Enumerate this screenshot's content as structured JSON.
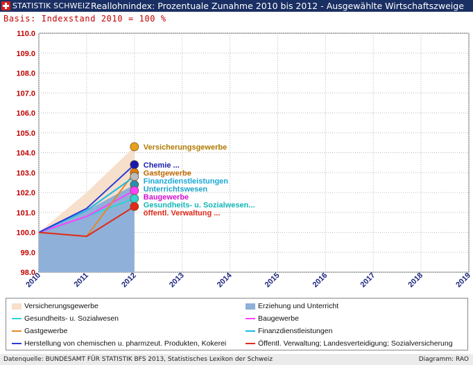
{
  "header": {
    "brand": "STATISTIK SCHWEIZ",
    "title": "Reallohnindex: Prozentuale Zunahme 2010 bis 2012 - Ausgewählte Wirtschaftszweige",
    "subtitle": "Basis: Indexstand 2010 = 100 %"
  },
  "chart_data": {
    "type": "line",
    "title": "Reallohnindex: Prozentuale Zunahme 2010 bis 2012 - Ausgewählte Wirtschaftszweige",
    "subtitle": "Basis: Indexstand 2010 = 100 %",
    "x": [
      2010,
      2011,
      2012
    ],
    "xlim": [
      2010,
      2019
    ],
    "ylim": [
      98.0,
      110.0
    ],
    "x_ticks": [
      "2010",
      "2011",
      "2012",
      "2013",
      "2014",
      "2015",
      "2016",
      "2017",
      "2018",
      "2019"
    ],
    "y_ticks": [
      "98.0",
      "99.0",
      "100.0",
      "101.0",
      "102.0",
      "103.0",
      "104.0",
      "105.0",
      "106.0",
      "107.0",
      "108.0",
      "109.0",
      "110.0"
    ],
    "grid": true,
    "legend_position": "bottom",
    "series": [
      {
        "name": "Versicherungsgewerbe",
        "kind": "area",
        "values": [
          100.0,
          102.0,
          104.3
        ],
        "color": "#f6dfcb",
        "marker_color": "#e8a21a",
        "label": "Versicherungsgewerbe",
        "label_color": "#b07a00"
      },
      {
        "name": "Erziehung und Unterricht",
        "kind": "area",
        "values": [
          100.0,
          101.1,
          102.4
        ],
        "color": "#8fb0d8",
        "marker_color": "#2b8fb0",
        "label": "Unterrichtswesen",
        "label_color": "#18a2c8"
      },
      {
        "name": "Gesundheits- u. Sozialwesen",
        "kind": "line",
        "values": [
          100.0,
          100.8,
          101.7
        ],
        "color": "#2ad4d4",
        "marker_color": "#35d0d0",
        "label": "Gesundheits- u. Sozialwesen...",
        "label_color": "#14b6b6"
      },
      {
        "name": "Baugewerbe",
        "kind": "line",
        "values": [
          100.0,
          100.8,
          102.1
        ],
        "color": "#ff40ff",
        "marker_color": "#ff40ff",
        "label": "Baugewerbe",
        "label_color": "#d010d0"
      },
      {
        "name": "Gastgewerbe",
        "kind": "line",
        "values": [
          100.0,
          99.8,
          103.0
        ],
        "color": "#e08a2a",
        "marker_color": "#e07a10",
        "label": "Gastgewerbe",
        "label_color": "#c06a00"
      },
      {
        "name": "Finanzdienstleistungen",
        "kind": "line",
        "values": [
          100.0,
          101.1,
          102.8
        ],
        "color": "#19b8e6",
        "marker_color": "#bcbcbc",
        "label": "Finanzdienstleistungen",
        "label_color": "#18a8d8"
      },
      {
        "name": "Herstellung von chemischen u. pharmzeut. Produkten, Kokerei",
        "kind": "line",
        "values": [
          100.0,
          101.2,
          103.4
        ],
        "color": "#2a3ad8",
        "marker_color": "#1a1ab0",
        "label": "Chemie ...",
        "label_color": "#1a1ab0"
      },
      {
        "name": "Öffentl. Verwaltung; Landesverteidigung; Sozialversicherung",
        "kind": "line",
        "values": [
          100.0,
          99.8,
          101.3
        ],
        "color": "#e02a1a",
        "marker_color": "#e02a1a",
        "label": "öffentl. Verwaltung ...",
        "label_color": "#e02a1a"
      }
    ]
  },
  "legend": {
    "left": [
      "Versicherungsgewerbe",
      "Gesundheits- u. Sozialwesen",
      "Gastgewerbe",
      "Herstellung von chemischen u. pharmzeut. Produkten, Kokerei"
    ],
    "right": [
      "Erziehung und Unterricht",
      "Baugewerbe",
      "Finanzdienstleistungen",
      "Öffentl. Verwaltung; Landesverteidigung; Sozialversicherung"
    ]
  },
  "footer": {
    "source": "Datenquelle: BUNDESAMT FÜR STATISTIK BFS 2013, Statistisches Lexikon der Schweiz",
    "credit": "Diagramm: RAO"
  }
}
